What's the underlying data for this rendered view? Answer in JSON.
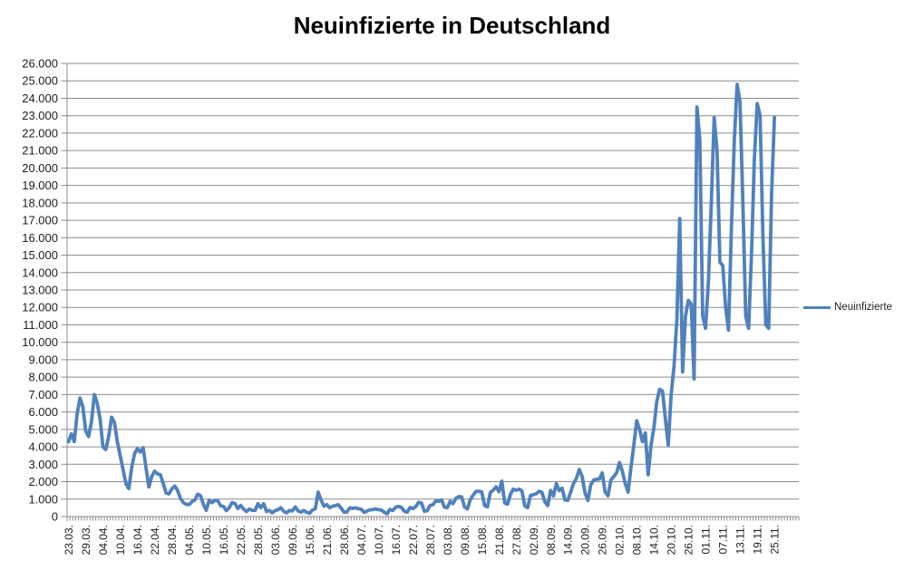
{
  "title": "Neuinfizierte in Deutschland",
  "legend": {
    "label": "Neuinfizierte",
    "position": "right"
  },
  "colors": {
    "series": "#4F81BD",
    "gridline": "#8C8C8C",
    "axis": "#8C8C8C",
    "text": "#202020",
    "title_text": "#000000",
    "background": "#FFFFFF"
  },
  "y_axis": {
    "min": 0,
    "max": 26000,
    "step": 1000,
    "tick_labels": [
      "0",
      "1.000",
      "2.000",
      "3.000",
      "4.000",
      "5.000",
      "6.000",
      "7.000",
      "8.000",
      "9.000",
      "10.000",
      "11.000",
      "12.000",
      "13.000",
      "14.000",
      "15.000",
      "16.000",
      "17.000",
      "18.000",
      "19.000",
      "20.000",
      "21.000",
      "22.000",
      "23.000",
      "24.000",
      "25.000",
      "26.000"
    ]
  },
  "x_axis": {
    "label_every": 6,
    "tick_labels": [
      "23.03.",
      "29.03.",
      "04.04.",
      "10.04.",
      "16.04.",
      "22.04.",
      "28.04.",
      "04.05.",
      "10.05.",
      "16.05.",
      "22.05.",
      "28.05.",
      "03.06.",
      "09.06.",
      "15.06.",
      "21.06.",
      "28.06.",
      "04.07.",
      "10.07.",
      "16.07.",
      "22.07.",
      "28.07.",
      "03.08.",
      "09.08.",
      "15.08.",
      "21.08.",
      "27.08.",
      "02.09.",
      "08.09.",
      "14.09.",
      "20.09.",
      "26.09.",
      "02.10.",
      "08.10.",
      "14.10.",
      "20.10.",
      "26.10.",
      "01.11.",
      "07.11.",
      "13.11.",
      "19.11.",
      "25.11."
    ]
  },
  "chart_data": {
    "type": "line",
    "title": "Neuinfizierte in Deutschland",
    "series_name": "Neuinfizierte",
    "ylim": [
      0,
      26000
    ],
    "grid": true,
    "legend_position": "right",
    "x": [
      "23.03.",
      "24.03.",
      "25.03.",
      "26.03.",
      "27.03.",
      "28.03.",
      "29.03.",
      "30.03.",
      "31.03.",
      "01.04.",
      "02.04.",
      "03.04.",
      "04.04.",
      "05.04.",
      "06.04.",
      "07.04.",
      "08.04.",
      "09.04.",
      "10.04.",
      "11.04.",
      "12.04.",
      "13.04.",
      "14.04.",
      "15.04.",
      "16.04.",
      "17.04.",
      "18.04.",
      "19.04.",
      "20.04.",
      "21.04.",
      "22.04.",
      "23.04.",
      "24.04.",
      "25.04.",
      "26.04.",
      "27.04.",
      "28.04.",
      "29.04.",
      "30.04.",
      "01.05.",
      "02.05.",
      "03.05.",
      "04.05.",
      "05.05.",
      "06.05.",
      "07.05.",
      "08.05.",
      "09.05.",
      "10.05.",
      "11.05.",
      "12.05.",
      "13.05.",
      "14.05.",
      "15.05.",
      "16.05.",
      "17.05.",
      "18.05.",
      "19.05.",
      "20.05.",
      "21.05.",
      "22.05.",
      "23.05.",
      "24.05.",
      "25.05.",
      "26.05.",
      "27.05.",
      "28.05.",
      "29.05.",
      "30.05.",
      "31.05.",
      "01.06.",
      "02.06.",
      "03.06.",
      "04.06.",
      "05.06.",
      "06.06.",
      "07.06.",
      "08.06.",
      "09.06.",
      "10.06.",
      "11.06.",
      "12.06.",
      "13.06.",
      "14.06.",
      "15.06.",
      "16.06.",
      "17.06.",
      "18.06.",
      "19.06.",
      "20.06.",
      "21.06.",
      "23.06.",
      "24.06.",
      "25.06.",
      "26.06.",
      "27.06.",
      "28.06.",
      "29.06.",
      "30.06.",
      "01.07.",
      "02.07.",
      "03.07.",
      "04.07.",
      "05.07.",
      "06.07.",
      "07.07.",
      "08.07.",
      "09.07.",
      "10.07.",
      "11.07.",
      "12.07.",
      "13.07.",
      "14.07.",
      "15.07.",
      "16.07.",
      "17.07.",
      "18.07.",
      "19.07.",
      "20.07.",
      "21.07.",
      "22.07.",
      "23.07.",
      "24.07.",
      "25.07.",
      "26.07.",
      "27.07.",
      "28.07.",
      "29.07.",
      "30.07.",
      "31.07.",
      "01.08.",
      "02.08.",
      "03.08.",
      "04.08.",
      "05.08.",
      "06.08.",
      "07.08.",
      "08.08.",
      "09.08.",
      "10.08.",
      "11.08.",
      "12.08.",
      "13.08.",
      "14.08.",
      "15.08.",
      "16.08.",
      "17.08.",
      "18.08.",
      "19.08.",
      "20.08.",
      "21.08.",
      "22.08.",
      "23.08.",
      "24.08.",
      "25.08.",
      "26.08.",
      "27.08.",
      "28.08.",
      "29.08.",
      "30.08.",
      "31.08.",
      "01.09.",
      "02.09.",
      "03.09.",
      "04.09.",
      "05.09.",
      "06.09.",
      "07.09.",
      "08.09.",
      "09.09.",
      "10.09.",
      "11.09.",
      "12.09.",
      "13.09.",
      "14.09.",
      "15.09.",
      "16.09.",
      "17.09.",
      "18.09.",
      "19.09.",
      "20.09.",
      "21.09.",
      "22.09.",
      "23.09.",
      "24.09.",
      "25.09.",
      "26.09.",
      "27.09.",
      "28.09.",
      "29.09.",
      "30.09.",
      "01.10.",
      "02.10.",
      "03.10.",
      "04.10.",
      "05.10.",
      "06.10.",
      "07.10.",
      "08.10.",
      "09.10.",
      "10.10.",
      "11.10.",
      "12.10.",
      "13.10.",
      "14.10.",
      "15.10.",
      "16.10.",
      "17.10.",
      "18.10.",
      "19.10.",
      "20.10.",
      "21.10.",
      "22.10.",
      "23.10.",
      "24.10.",
      "25.10.",
      "26.10.",
      "27.10.",
      "28.10.",
      "29.10.",
      "30.10.",
      "31.10.",
      "01.11.",
      "02.11.",
      "03.11.",
      "04.11.",
      "05.11.",
      "06.11.",
      "07.11.",
      "08.11.",
      "09.11.",
      "10.11.",
      "11.11.",
      "12.11.",
      "13.11.",
      "14.11.",
      "15.11.",
      "16.11.",
      "17.11.",
      "18.11.",
      "19.11.",
      "20.11.",
      "21.11.",
      "22.11.",
      "23.11.",
      "24.11.",
      "25.11."
    ],
    "values": [
      4300,
      4750,
      4300,
      5900,
      6800,
      6300,
      4900,
      4600,
      5450,
      7000,
      6500,
      5600,
      4000,
      3850,
      4600,
      5700,
      5400,
      4300,
      3500,
      2700,
      1900,
      1600,
      2800,
      3600,
      3900,
      3700,
      3950,
      2800,
      1700,
      2300,
      2600,
      2450,
      2400,
      1900,
      1350,
      1300,
      1600,
      1750,
      1500,
      1050,
      800,
      700,
      680,
      850,
      950,
      1280,
      1200,
      700,
      360,
      930,
      800,
      930,
      910,
      620,
      580,
      340,
      510,
      800,
      750,
      460,
      640,
      430,
      290,
      430,
      360,
      350,
      740,
      510,
      740,
      290,
      350,
      213,
      342,
      394,
      507,
      301,
      214,
      350,
      318,
      555,
      318,
      258,
      348,
      247,
      192,
      378,
      450,
      1400,
      950,
      600,
      687,
      503,
      587,
      630,
      680,
      480,
      256,
      262,
      498,
      466,
      503,
      446,
      422,
      239,
      312,
      390,
      397,
      442,
      395,
      378,
      248,
      159,
      412,
      345,
      534,
      583,
      529,
      305,
      249,
      522,
      454,
      569,
      815,
      781,
      305,
      340,
      633,
      684,
      902,
      870,
      955,
      540,
      509,
      879,
      741,
      1045,
      1147,
      1122,
      555,
      436,
      966,
      1226,
      1445,
      1449,
      1415,
      625,
      561,
      1390,
      1510,
      1707,
      1427,
      2034,
      782,
      711,
      1278,
      1576,
      1507,
      1571,
      1479,
      610,
      510,
      1218,
      1256,
      1311,
      1453,
      1378,
      847,
      633,
      1499,
      1176,
      1892,
      1484,
      1630,
      948,
      927,
      1407,
      1901,
      2194,
      2700,
      2297,
      1345,
      922,
      1821,
      2089,
      2143,
      2153,
      2507,
      1411,
      1192,
      2089,
      2298,
      2500,
      3100,
      2600,
      1900,
      1400,
      2800,
      4100,
      5500,
      5000,
      4300,
      4800,
      2400,
      4100,
      5100,
      6600,
      7300,
      7200,
      5600,
      4100,
      7000,
      8600,
      11300,
      17100,
      8300,
      11500,
      12400,
      12200,
      7900,
      23500,
      21600,
      11500,
      10800,
      13500,
      18000,
      22900,
      21000,
      14600,
      14400,
      12000,
      10700,
      16500,
      21500,
      24800,
      23800,
      18000,
      11500,
      10800,
      15000,
      20500,
      23700,
      23000,
      16000,
      11000,
      10800,
      18500,
      22900
    ]
  }
}
